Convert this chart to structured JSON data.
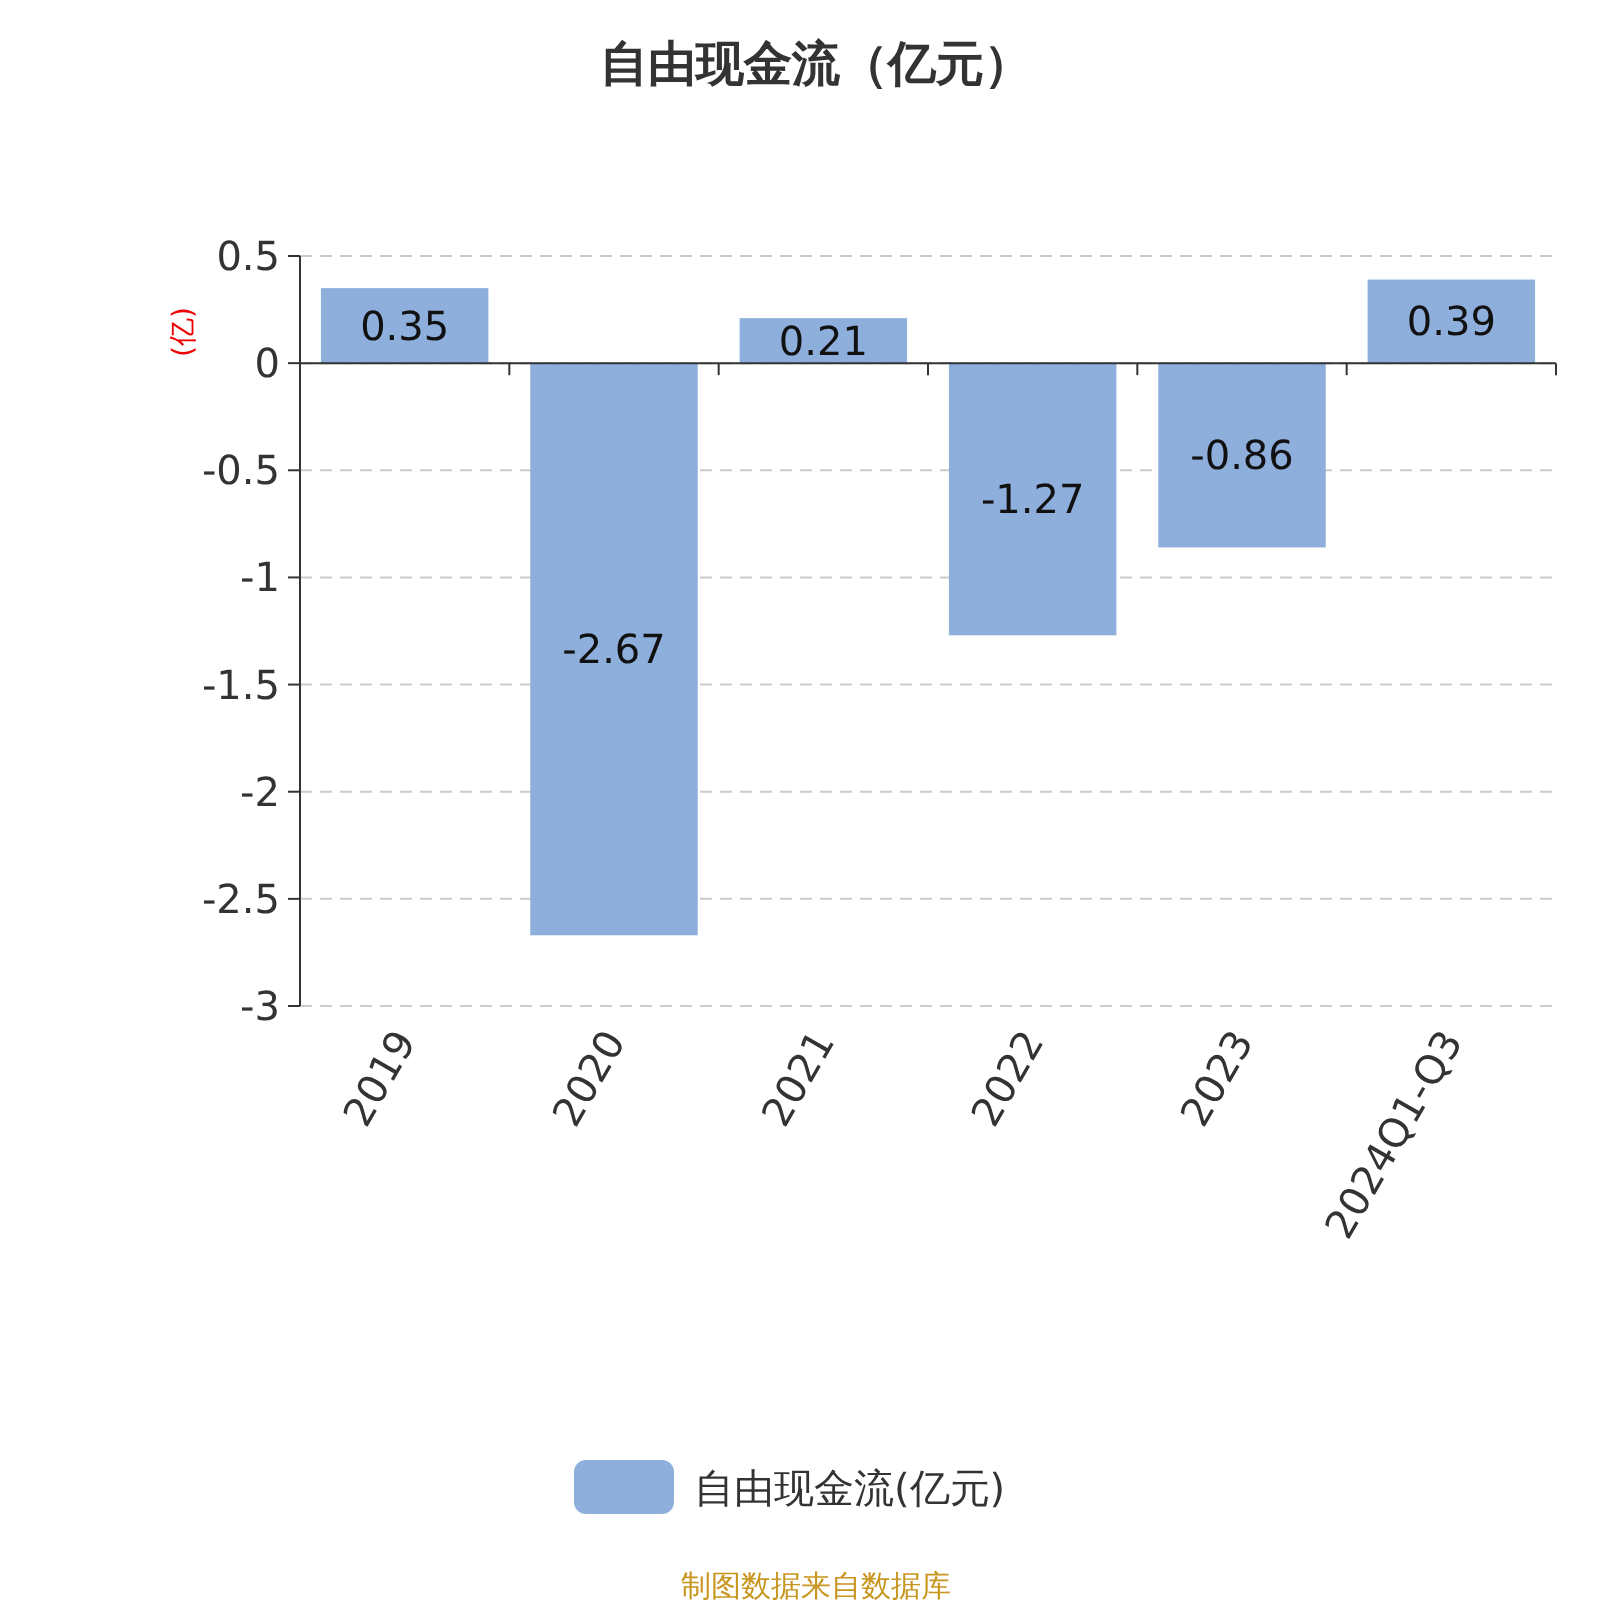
{
  "chart_data": {
    "type": "bar",
    "title": "自由现金流（亿元）",
    "ylabel": "(亿)",
    "categories": [
      "2019",
      "2020",
      "2021",
      "2022",
      "2023",
      "2024Q1-Q3"
    ],
    "series": [
      {
        "name": "自由现金流(亿元)",
        "color": "#8eaedb",
        "values": [
          0.35,
          -2.67,
          0.21,
          -1.27,
          -0.86,
          0.39
        ]
      }
    ],
    "ylim": [
      -3,
      0.5
    ],
    "yticks": [
      0.5,
      0,
      -0.5,
      -1,
      -1.5,
      -2,
      -2.5,
      -3
    ],
    "grid": "y",
    "legend": "bottom",
    "data_labels": true,
    "annotations": [
      "制图数据来自数据库"
    ]
  }
}
